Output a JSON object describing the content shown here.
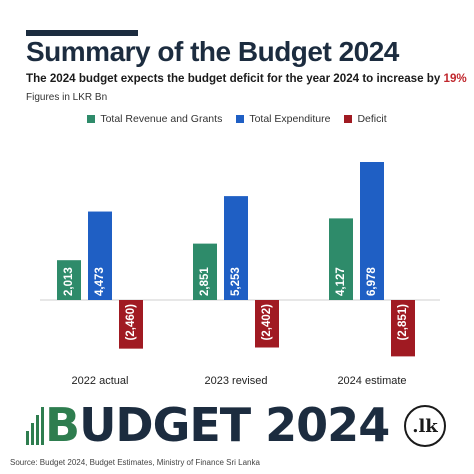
{
  "header": {
    "title": "Summary of the Budget 2024",
    "subtitle_prefix": "The 2024 budget expects the budget deficit for the year 2024 to increase by ",
    "subtitle_highlight": "19%",
    "figures_note": "Figures in LKR Bn"
  },
  "colors": {
    "revenue": "#2e8b6a",
    "expenditure": "#1f5fc4",
    "deficit": "#a01a22",
    "title": "#1c2c3f"
  },
  "chart_data": {
    "type": "bar",
    "title": "Summary of the Budget 2024",
    "subtitle": "The 2024 budget expects the budget deficit for the year 2024 to increase by 19%",
    "xlabel": "",
    "ylabel": "",
    "categories": [
      "2022 actual",
      "2023 revised",
      "2024 estimate"
    ],
    "series": [
      {
        "name": "Total Revenue and Grants",
        "values": [
          2013,
          2851,
          4127
        ],
        "labels": [
          "2,013",
          "2,851",
          "4,127"
        ]
      },
      {
        "name": "Total Expenditure",
        "values": [
          4473,
          5253,
          6978
        ],
        "labels": [
          "4,473",
          "5,253",
          "6,978"
        ]
      },
      {
        "name": "Deficit",
        "values": [
          -2460,
          -2402,
          -2851
        ],
        "labels": [
          "(2,460)",
          "(2,402)",
          "(2,851)"
        ]
      }
    ],
    "ylim": [
      -3000,
      7000
    ],
    "grid": false,
    "legend": "top-center"
  },
  "footer": {
    "brand_first": "B",
    "brand_rest": "UDGET 2024",
    "badge": ".lk",
    "source": "Source: Budget 2024, Budget Estimates, Ministry of Finance Sri Lanka"
  }
}
